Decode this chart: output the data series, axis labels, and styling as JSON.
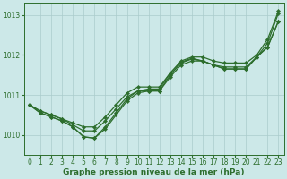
{
  "xlabel": "Graphe pression niveau de la mer (hPa)",
  "xlim": [
    -0.5,
    23.5
  ],
  "ylim": [
    1009.5,
    1013.3
  ],
  "yticks": [
    1010,
    1011,
    1012,
    1013
  ],
  "xticks": [
    0,
    1,
    2,
    3,
    4,
    5,
    6,
    7,
    8,
    9,
    10,
    11,
    12,
    13,
    14,
    15,
    16,
    17,
    18,
    19,
    20,
    21,
    22,
    23
  ],
  "background_color": "#cce8e8",
  "grid_color": "#aacccc",
  "line_color": "#2d6e2d",
  "series": [
    [
      1010.75,
      1010.55,
      1010.45,
      1010.35,
      1010.2,
      1009.95,
      1009.92,
      1010.15,
      1010.5,
      1010.85,
      1011.05,
      1011.1,
      1011.1,
      1011.5,
      1011.8,
      1011.9,
      1011.85,
      1011.75,
      1011.65,
      1011.65,
      1011.65,
      1011.95,
      1012.2,
      1012.85
    ],
    [
      1010.75,
      1010.55,
      1010.45,
      1010.35,
      1010.2,
      1009.95,
      1009.92,
      1010.2,
      1010.55,
      1010.9,
      1011.1,
      1011.15,
      1011.15,
      1011.55,
      1011.82,
      1011.92,
      1011.85,
      1011.75,
      1011.65,
      1011.65,
      1011.65,
      1011.95,
      1012.2,
      1012.85
    ],
    [
      1010.75,
      1010.6,
      1010.5,
      1010.4,
      1010.25,
      1010.1,
      1010.1,
      1010.35,
      1010.65,
      1010.95,
      1011.1,
      1011.1,
      1011.1,
      1011.45,
      1011.75,
      1011.85,
      1011.85,
      1011.75,
      1011.7,
      1011.7,
      1011.7,
      1011.95,
      1012.3,
      1013.05
    ],
    [
      1010.75,
      1010.6,
      1010.5,
      1010.4,
      1010.3,
      1010.2,
      1010.2,
      1010.45,
      1010.75,
      1011.05,
      1011.2,
      1011.2,
      1011.2,
      1011.55,
      1011.85,
      1011.95,
      1011.95,
      1011.85,
      1011.8,
      1011.8,
      1011.8,
      1012.0,
      1012.4,
      1013.1
    ]
  ],
  "x": [
    0,
    1,
    2,
    3,
    4,
    5,
    6,
    7,
    8,
    9,
    10,
    11,
    12,
    13,
    14,
    15,
    16,
    17,
    18,
    19,
    20,
    21,
    22,
    23
  ],
  "marker": "D",
  "marker_size": 2.2,
  "line_width": 0.9,
  "tick_fontsize": 5.5,
  "label_fontsize": 6.5,
  "label_fontweight": "bold"
}
